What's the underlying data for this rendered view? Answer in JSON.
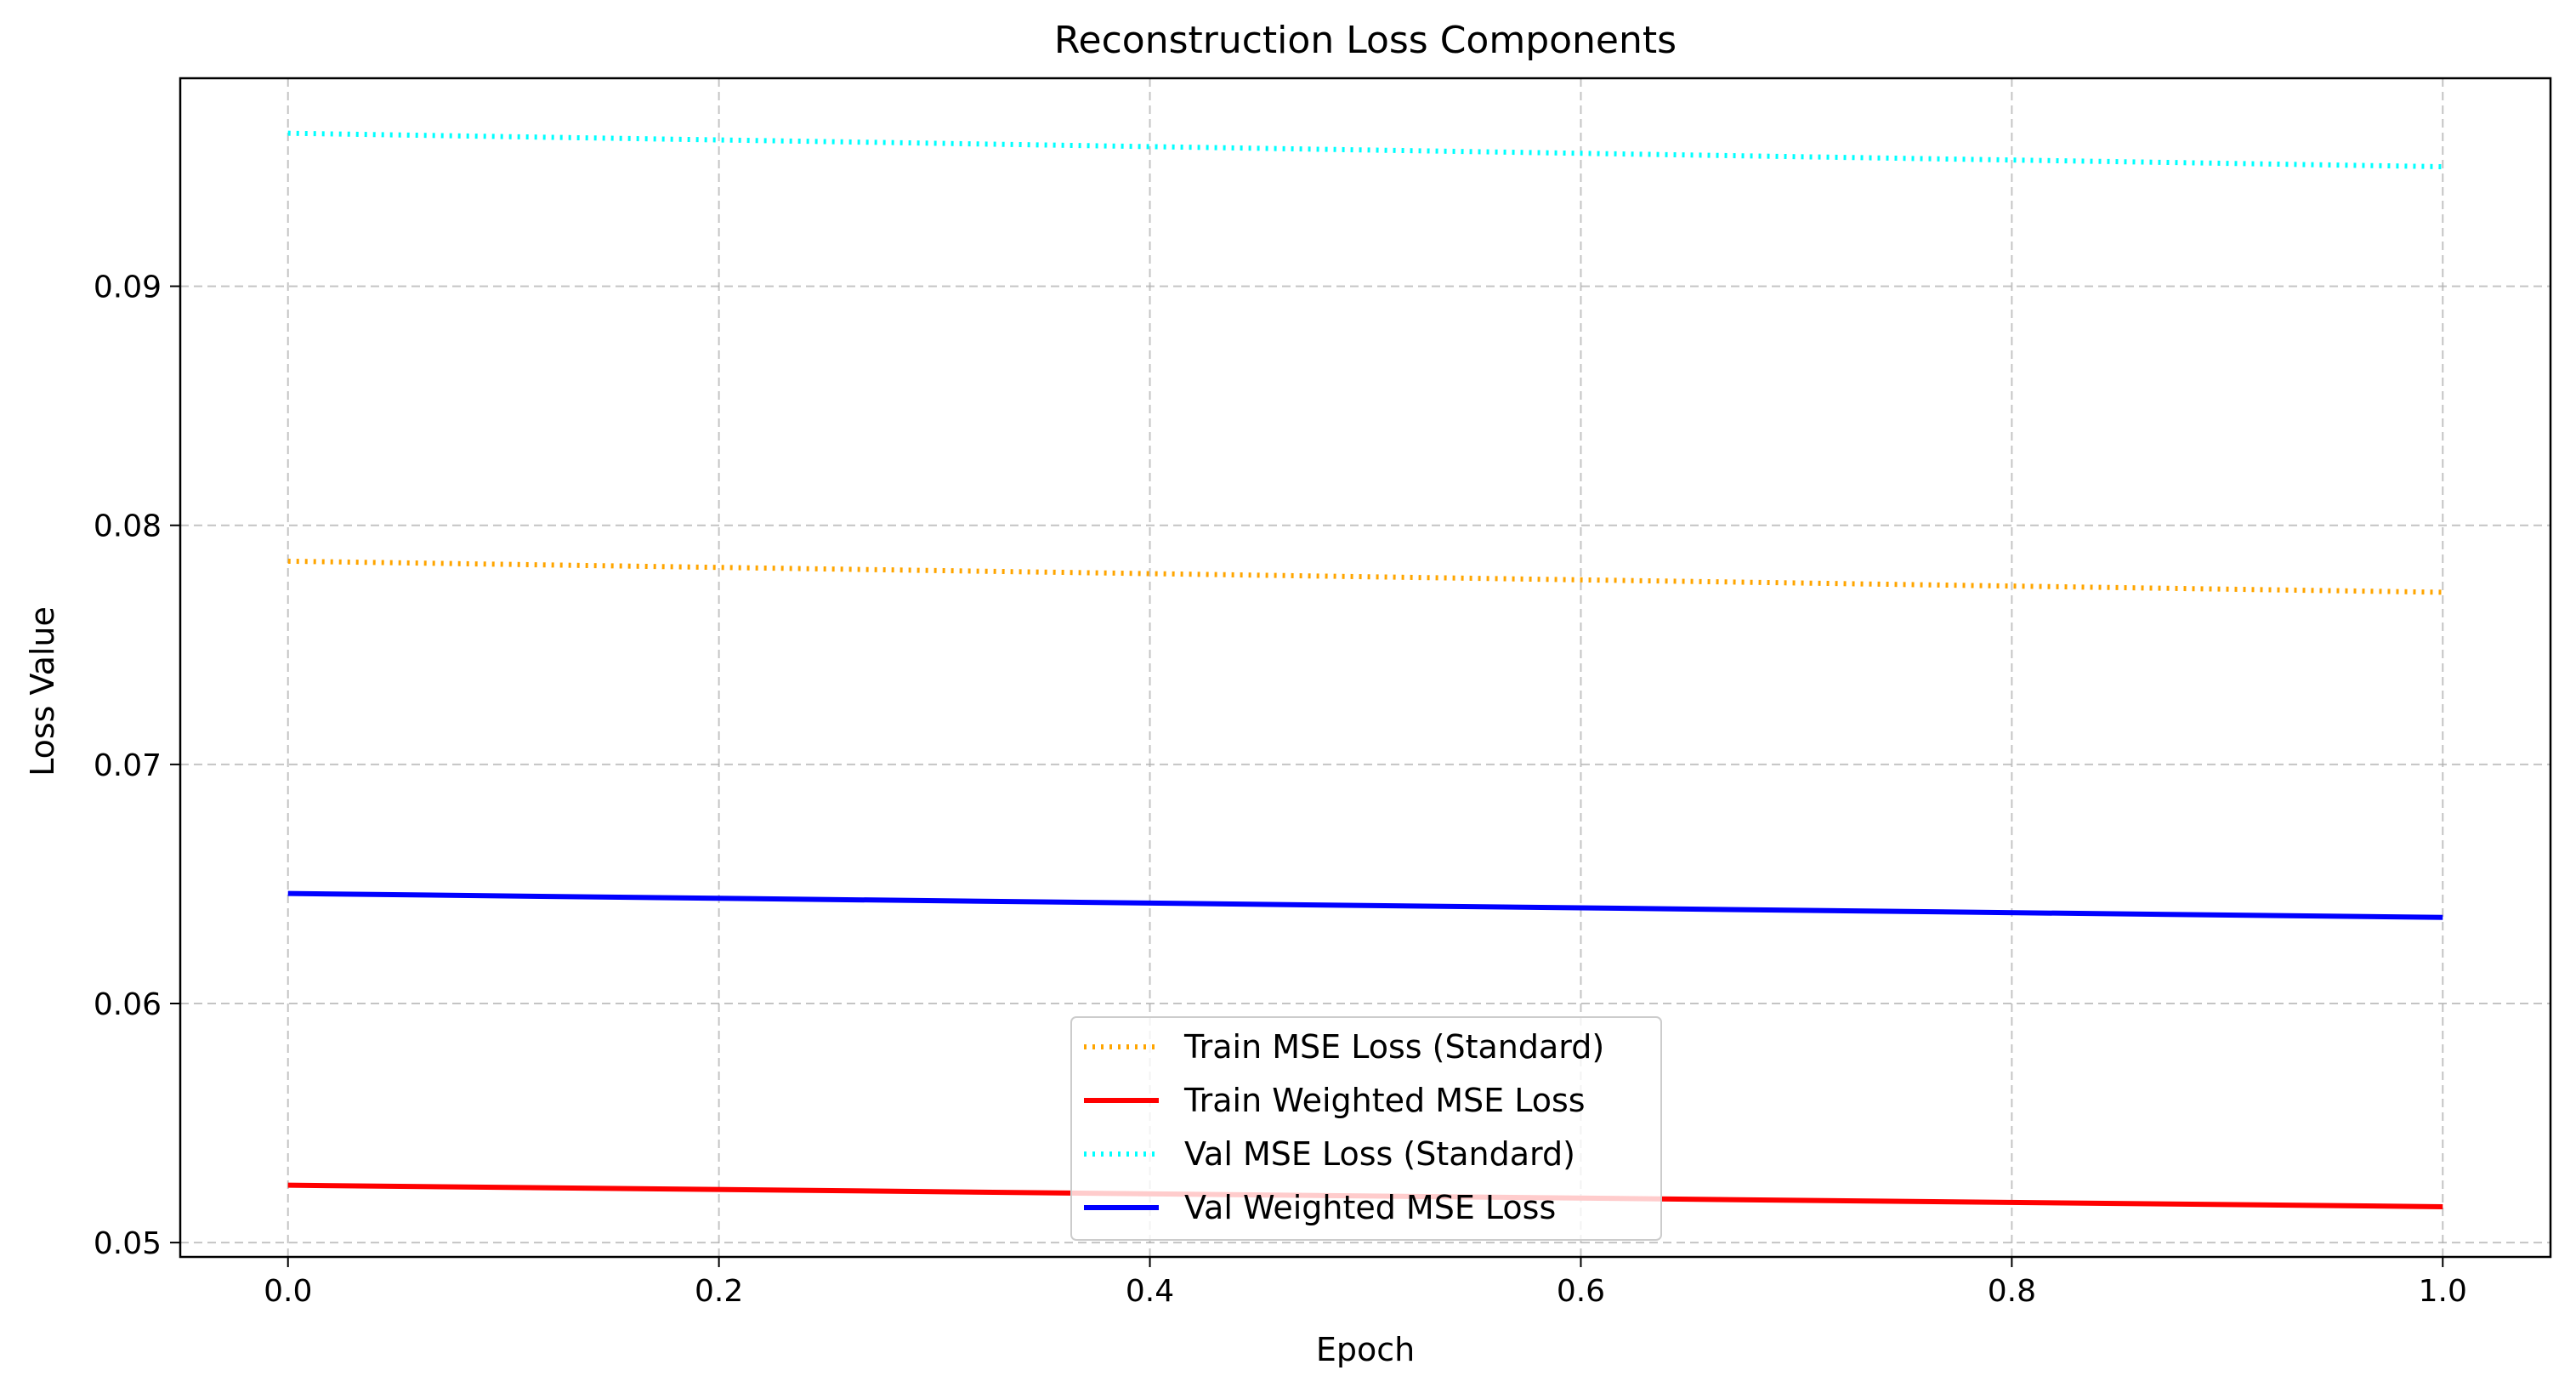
{
  "chart_data": {
    "type": "line",
    "title": "Reconstruction Loss Components",
    "xlabel": "Epoch",
    "ylabel": "Loss Value",
    "xlim": [
      -0.05,
      1.05
    ],
    "ylim": [
      0.0494,
      0.0987
    ],
    "xticks": [
      0.0,
      0.2,
      0.4,
      0.6,
      0.8,
      1.0
    ],
    "xtick_labels": [
      "0.0",
      "0.2",
      "0.4",
      "0.6",
      "0.8",
      "1.0"
    ],
    "yticks": [
      0.05,
      0.06,
      0.07,
      0.08,
      0.09
    ],
    "ytick_labels": [
      "0.05",
      "0.06",
      "0.07",
      "0.08",
      "0.09"
    ],
    "grid": true,
    "legend_position": "lower-center",
    "series": [
      {
        "name": "Train MSE Loss (Standard)",
        "x": [
          0,
          1
        ],
        "values": [
          0.0785,
          0.0772
        ],
        "color": "#ffa500",
        "style": "dotted"
      },
      {
        "name": "Train Weighted MSE Loss",
        "x": [
          0,
          1
        ],
        "values": [
          0.0524,
          0.0515
        ],
        "color": "#ff0000",
        "style": "solid"
      },
      {
        "name": "Val MSE Loss (Standard)",
        "x": [
          0,
          1
        ],
        "values": [
          0.0964,
          0.095
        ],
        "color": "#00ffff",
        "style": "dotted"
      },
      {
        "name": "Val Weighted MSE Loss",
        "x": [
          0,
          1
        ],
        "values": [
          0.0646,
          0.0636
        ],
        "color": "#0000ff",
        "style": "solid"
      }
    ]
  }
}
